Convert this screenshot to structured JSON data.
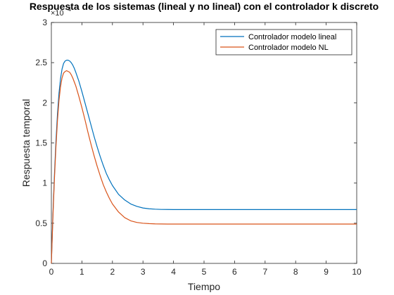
{
  "chart_data": {
    "type": "line",
    "title": "Respuesta de los sistemas (lineal y no lineal) con el controlador k discreto",
    "xlabel": "Tiempo",
    "ylabel": "Respuesta temporal",
    "xlim": [
      0,
      10
    ],
    "ylim": [
      0,
      3
    ],
    "y_multiplier": "×10⁻⁴",
    "y_multiplier_parts": {
      "base": "×10",
      "exponent": "-4"
    },
    "xticks": [
      "0",
      "1",
      "2",
      "3",
      "4",
      "5",
      "6",
      "7",
      "8",
      "9",
      "10"
    ],
    "yticks": [
      "0",
      "0.5",
      "1",
      "1.5",
      "2",
      "2.5",
      "3"
    ],
    "grid": false,
    "legend_position": "top-right",
    "x": [
      0,
      0.05,
      0.1,
      0.15,
      0.2,
      0.25,
      0.3,
      0.35,
      0.4,
      0.45,
      0.5,
      0.55,
      0.6,
      0.65,
      0.7,
      0.75,
      0.8,
      0.9,
      1.0,
      1.1,
      1.2,
      1.3,
      1.4,
      1.5,
      1.6,
      1.7,
      1.8,
      1.9,
      2.0,
      2.2,
      2.4,
      2.6,
      2.8,
      3.0,
      3.2,
      3.4,
      3.6,
      3.8,
      4.0,
      4.5,
      5.0,
      6.0,
      7.0,
      8.0,
      9.0,
      10.0
    ],
    "series": [
      {
        "name": "Controlador modelo lineal",
        "color": "#0072bd",
        "values": [
          0,
          0.6,
          1.1,
          1.52,
          1.86,
          2.12,
          2.3,
          2.42,
          2.49,
          2.52,
          2.53,
          2.53,
          2.52,
          2.5,
          2.47,
          2.43,
          2.38,
          2.27,
          2.14,
          2.0,
          1.86,
          1.72,
          1.58,
          1.45,
          1.33,
          1.22,
          1.12,
          1.04,
          0.97,
          0.86,
          0.79,
          0.74,
          0.71,
          0.69,
          0.68,
          0.675,
          0.672,
          0.671,
          0.67,
          0.67,
          0.67,
          0.67,
          0.67,
          0.67,
          0.67,
          0.67
        ]
      },
      {
        "name": "Controlador modelo NL",
        "color": "#d95319",
        "values": [
          0,
          0.57,
          1.05,
          1.45,
          1.78,
          2.03,
          2.2,
          2.31,
          2.37,
          2.39,
          2.4,
          2.39,
          2.38,
          2.35,
          2.31,
          2.26,
          2.21,
          2.08,
          1.94,
          1.79,
          1.63,
          1.48,
          1.34,
          1.21,
          1.09,
          0.98,
          0.89,
          0.81,
          0.74,
          0.64,
          0.57,
          0.53,
          0.51,
          0.5,
          0.495,
          0.492,
          0.491,
          0.49,
          0.49,
          0.49,
          0.49,
          0.49,
          0.49,
          0.49,
          0.49,
          0.49
        ]
      }
    ]
  }
}
